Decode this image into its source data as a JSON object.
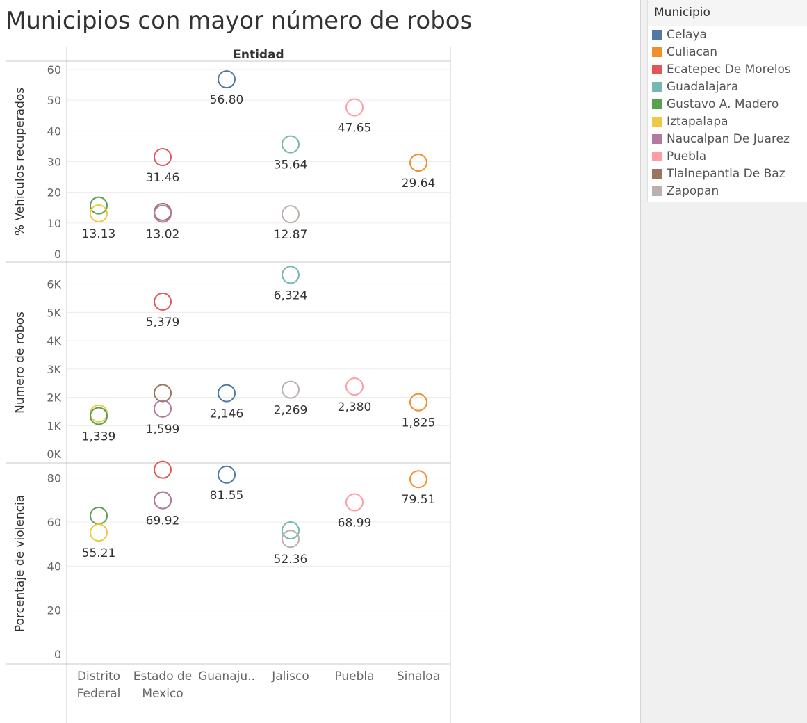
{
  "title": "Municipios con mayor número de robos",
  "legend": {
    "title": "Municipio",
    "items": [
      {
        "label": "Celaya",
        "color": "#4e79a7"
      },
      {
        "label": "Culiacan",
        "color": "#f28e2b"
      },
      {
        "label": "Ecatepec De Morelos",
        "color": "#e15759"
      },
      {
        "label": "Guadalajara",
        "color": "#76b7b2"
      },
      {
        "label": "Gustavo A. Madero",
        "color": "#59a14f"
      },
      {
        "label": "Iztapalapa",
        "color": "#edc948"
      },
      {
        "label": "Naucalpan De Juarez",
        "color": "#b07aa1"
      },
      {
        "label": "Puebla",
        "color": "#ff9da7"
      },
      {
        "label": "Tlalnepantla De Baz",
        "color": "#9c755f"
      },
      {
        "label": "Zapopan",
        "color": "#bab0ac"
      }
    ]
  },
  "chart_data": {
    "type": "scatter",
    "column_header": "Entidad",
    "categories": [
      "Distrito\nFederal",
      "Estado de\nMexico",
      "Guanaju..",
      "Jalisco",
      "Puebla",
      "Sinaloa"
    ],
    "panels": [
      {
        "ylabel": "% Vehiculos recuperados",
        "ylim": [
          0,
          60
        ],
        "ticks": [
          {
            "v": 0,
            "t": "0"
          },
          {
            "v": 10,
            "t": "10"
          },
          {
            "v": 20,
            "t": "20"
          },
          {
            "v": 30,
            "t": "30"
          },
          {
            "v": 40,
            "t": "40"
          },
          {
            "v": 50,
            "t": "50"
          },
          {
            "v": 60,
            "t": "60"
          }
        ],
        "points": [
          {
            "cat": 0,
            "municipio": "Gustavo A. Madero",
            "value": 15.7
          },
          {
            "cat": 0,
            "municipio": "Iztapalapa",
            "value": 13.13,
            "label": "13.13"
          },
          {
            "cat": 1,
            "municipio": "Ecatepec De Morelos",
            "value": 31.46,
            "label": "31.46"
          },
          {
            "cat": 1,
            "municipio": "Tlalnepantla De Baz",
            "value": 13.6
          },
          {
            "cat": 1,
            "municipio": "Naucalpan De Juarez",
            "value": 13.02,
            "label": "13.02"
          },
          {
            "cat": 2,
            "municipio": "Celaya",
            "value": 56.8,
            "label": "56.80"
          },
          {
            "cat": 3,
            "municipio": "Guadalajara",
            "value": 35.64,
            "label": "35.64"
          },
          {
            "cat": 3,
            "municipio": "Zapopan",
            "value": 12.87,
            "label": "12.87"
          },
          {
            "cat": 4,
            "municipio": "Puebla",
            "value": 47.65,
            "label": "47.65"
          },
          {
            "cat": 5,
            "municipio": "Culiacan",
            "value": 29.64,
            "label": "29.64"
          }
        ]
      },
      {
        "ylabel": "Numero de robos",
        "ylim": [
          0,
          6800
        ],
        "ticks": [
          {
            "v": 0,
            "t": "0K"
          },
          {
            "v": 1000,
            "t": "1K"
          },
          {
            "v": 2000,
            "t": "2K"
          },
          {
            "v": 3000,
            "t": "3K"
          },
          {
            "v": 4000,
            "t": "4K"
          },
          {
            "v": 5000,
            "t": "5K"
          },
          {
            "v": 6000,
            "t": "6K"
          }
        ],
        "points": [
          {
            "cat": 0,
            "municipio": "Iztapalapa",
            "value": 1430
          },
          {
            "cat": 0,
            "municipio": "Gustavo A. Madero",
            "value": 1339,
            "label": "1,339"
          },
          {
            "cat": 1,
            "municipio": "Ecatepec De Morelos",
            "value": 5379,
            "label": "5,379"
          },
          {
            "cat": 1,
            "municipio": "Tlalnepantla De Baz",
            "value": 2150
          },
          {
            "cat": 1,
            "municipio": "Naucalpan De Juarez",
            "value": 1599,
            "label": "1,599"
          },
          {
            "cat": 2,
            "municipio": "Celaya",
            "value": 2146,
            "label": "2,146"
          },
          {
            "cat": 3,
            "municipio": "Guadalajara",
            "value": 6324,
            "label": "6,324"
          },
          {
            "cat": 3,
            "municipio": "Zapopan",
            "value": 2269,
            "label": "2,269"
          },
          {
            "cat": 4,
            "municipio": "Puebla",
            "value": 2380,
            "label": "2,380"
          },
          {
            "cat": 5,
            "municipio": "Culiacan",
            "value": 1825,
            "label": "1,825"
          }
        ]
      },
      {
        "ylabel": "Porcentaje de violencia",
        "ylim": [
          0,
          90
        ],
        "ticks": [
          {
            "v": 0,
            "t": "0"
          },
          {
            "v": 20,
            "t": "20"
          },
          {
            "v": 40,
            "t": "40"
          },
          {
            "v": 60,
            "t": "60"
          },
          {
            "v": 80,
            "t": "80"
          }
        ],
        "points": [
          {
            "cat": 0,
            "municipio": "Gustavo A. Madero",
            "value": 62.9
          },
          {
            "cat": 0,
            "municipio": "Iztapalapa",
            "value": 55.21,
            "label": "55.21"
          },
          {
            "cat": 1,
            "municipio": "Ecatepec De Morelos",
            "value": 83.8
          },
          {
            "cat": 1,
            "municipio": "Tlalnepantla De Baz",
            "value": 69.9
          },
          {
            "cat": 1,
            "municipio": "Naucalpan De Juarez",
            "value": 69.92,
            "label": "69.92"
          },
          {
            "cat": 2,
            "municipio": "Celaya",
            "value": 81.55,
            "label": "81.55"
          },
          {
            "cat": 3,
            "municipio": "Guadalajara",
            "value": 56.2
          },
          {
            "cat": 3,
            "municipio": "Zapopan",
            "value": 52.36,
            "label": "52.36"
          },
          {
            "cat": 4,
            "municipio": "Puebla",
            "value": 68.99,
            "label": "68.99"
          },
          {
            "cat": 5,
            "municipio": "Culiacan",
            "value": 79.51,
            "label": "79.51"
          }
        ]
      }
    ]
  }
}
